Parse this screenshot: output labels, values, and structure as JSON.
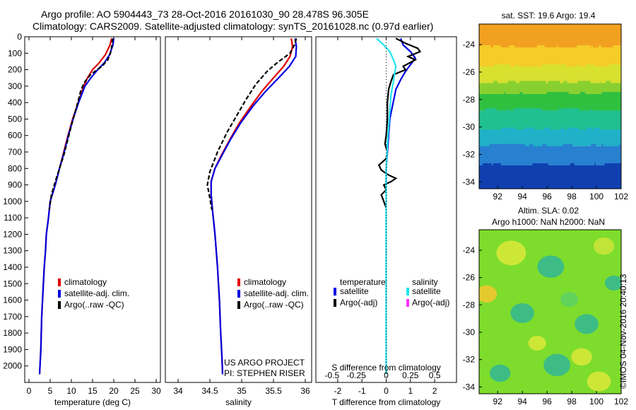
{
  "header": {
    "line1": "Argo profile: AO 5904443_73 28-Oct-2016 20161030_90 28.478S 96.305E",
    "line2": "Climatology: CARS2009. Satellite-adjusted climatology: synTS_20161028.nc (0.97d earlier)"
  },
  "colors": {
    "climatology": "#e00000",
    "satellite": "#0000e0",
    "argo": "#000000",
    "s_satellite": "#22e5f0",
    "s_argo": "#ff33ff"
  },
  "chart_data": [
    {
      "type": "line",
      "name": "temperature-profile",
      "xlabel": "temperature (deg C)",
      "xlim": [
        -1,
        31
      ],
      "ylim": [
        2100,
        0
      ],
      "xticks": [
        0,
        5,
        10,
        15,
        20,
        25,
        30
      ],
      "yticks": [
        0,
        100,
        200,
        300,
        400,
        500,
        600,
        700,
        800,
        900,
        1000,
        1100,
        1200,
        1300,
        1400,
        1500,
        1600,
        1700,
        1800,
        1900,
        2000
      ],
      "legend": [
        "climatology",
        "satellite-adj. clim.",
        "Argo(..raw -QC)"
      ],
      "legend_position": "center",
      "series": [
        {
          "name": "climatology",
          "color": "#e00000",
          "points": [
            [
              19.5,
              10
            ],
            [
              19.1,
              50
            ],
            [
              18.0,
              110
            ],
            [
              16.5,
              160
            ],
            [
              15.0,
              200
            ],
            [
              13.8,
              250
            ],
            [
              12.9,
              300
            ],
            [
              11.6,
              400
            ],
            [
              10.3,
              500
            ],
            [
              9.2,
              600
            ],
            [
              8.2,
              700
            ],
            [
              7.2,
              800
            ],
            [
              6.2,
              900
            ],
            [
              5.0,
              1000
            ],
            [
              4.6,
              1100
            ],
            [
              4.1,
              1200
            ],
            [
              3.9,
              1300
            ],
            [
              3.6,
              1400
            ],
            [
              3.4,
              1500
            ],
            [
              3.2,
              1600
            ],
            [
              3.0,
              1700
            ],
            [
              2.9,
              1800
            ],
            [
              2.8,
              1900
            ],
            [
              2.6,
              2000
            ],
            [
              2.5,
              2050
            ]
          ]
        },
        {
          "name": "satellite-adj. clim.",
          "color": "#0000e0",
          "points": [
            [
              20.0,
              10
            ],
            [
              19.8,
              50
            ],
            [
              19.0,
              110
            ],
            [
              17.7,
              160
            ],
            [
              16.2,
              200
            ],
            [
              14.6,
              250
            ],
            [
              13.2,
              300
            ],
            [
              11.7,
              400
            ],
            [
              10.4,
              500
            ],
            [
              9.3,
              600
            ],
            [
              8.3,
              700
            ],
            [
              7.2,
              800
            ],
            [
              6.2,
              900
            ],
            [
              5.0,
              1000
            ],
            [
              4.6,
              1100
            ],
            [
              4.1,
              1200
            ],
            [
              3.9,
              1300
            ],
            [
              3.6,
              1400
            ],
            [
              3.4,
              1500
            ],
            [
              3.2,
              1600
            ],
            [
              3.0,
              1700
            ],
            [
              2.9,
              1800
            ],
            [
              2.8,
              1900
            ],
            [
              2.6,
              2000
            ],
            [
              2.5,
              2050
            ]
          ]
        },
        {
          "name": "Argo(..raw -QC)",
          "color": "#000000",
          "dash": true,
          "points": [
            [
              19.7,
              10
            ],
            [
              19.6,
              50
            ],
            [
              19.2,
              100
            ],
            [
              18.6,
              140
            ],
            [
              17.2,
              180
            ],
            [
              14.5,
              230
            ],
            [
              13.0,
              280
            ],
            [
              12.2,
              330
            ],
            [
              11.3,
              420
            ],
            [
              10.2,
              520
            ],
            [
              9.2,
              620
            ],
            [
              8.2,
              720
            ],
            [
              7.2,
              800
            ],
            [
              6.2,
              880
            ],
            [
              5.3,
              960
            ],
            [
              4.8,
              1050
            ]
          ]
        }
      ]
    },
    {
      "type": "line",
      "name": "salinity-profile",
      "xlabel": "salinity",
      "xlim": [
        33.8,
        36.1
      ],
      "ylim": [
        2100,
        0
      ],
      "xticks": [
        34,
        34.5,
        35,
        35.5,
        36
      ],
      "legend": [
        "climatology",
        "satellite-adj. clim.",
        "Argo(..raw -QC)"
      ],
      "legend_position": "center",
      "annotation": [
        "US ARGO PROJECT",
        "PI: STEPHEN RISER"
      ],
      "series": [
        {
          "name": "climatology",
          "color": "#e00000",
          "points": [
            [
              35.78,
              10
            ],
            [
              35.8,
              60
            ],
            [
              35.76,
              120
            ],
            [
              35.66,
              180
            ],
            [
              35.5,
              250
            ],
            [
              35.32,
              330
            ],
            [
              35.15,
              420
            ],
            [
              34.97,
              520
            ],
            [
              34.82,
              620
            ],
            [
              34.68,
              720
            ],
            [
              34.58,
              800
            ],
            [
              34.52,
              880
            ],
            [
              34.52,
              960
            ],
            [
              34.54,
              1050
            ],
            [
              34.58,
              1200
            ],
            [
              34.62,
              1400
            ],
            [
              34.65,
              1600
            ],
            [
              34.67,
              1800
            ],
            [
              34.69,
              1950
            ],
            [
              34.7,
              2050
            ]
          ]
        },
        {
          "name": "satellite-adj. clim.",
          "color": "#0000e0",
          "points": [
            [
              35.84,
              10
            ],
            [
              35.86,
              60
            ],
            [
              35.85,
              120
            ],
            [
              35.75,
              180
            ],
            [
              35.58,
              250
            ],
            [
              35.38,
              330
            ],
            [
              35.18,
              420
            ],
            [
              34.99,
              520
            ],
            [
              34.83,
              620
            ],
            [
              34.69,
              720
            ],
            [
              34.58,
              800
            ],
            [
              34.52,
              880
            ],
            [
              34.52,
              960
            ],
            [
              34.54,
              1050
            ],
            [
              34.58,
              1200
            ],
            [
              34.62,
              1400
            ],
            [
              34.65,
              1600
            ],
            [
              34.67,
              1800
            ],
            [
              34.69,
              1950
            ],
            [
              34.7,
              2050
            ]
          ]
        },
        {
          "name": "Argo(..raw -QC)",
          "color": "#000000",
          "dash": true,
          "points": [
            [
              35.86,
              10
            ],
            [
              35.83,
              50
            ],
            [
              35.76,
              100
            ],
            [
              35.55,
              160
            ],
            [
              35.4,
              210
            ],
            [
              35.22,
              290
            ],
            [
              35.07,
              380
            ],
            [
              34.92,
              480
            ],
            [
              34.77,
              580
            ],
            [
              34.62,
              700
            ],
            [
              34.5,
              820
            ],
            [
              34.46,
              900
            ],
            [
              34.5,
              980
            ],
            [
              34.53,
              1050
            ]
          ]
        }
      ]
    },
    {
      "type": "line",
      "name": "difference-profile",
      "xlabel": "T difference from climatology",
      "xlabel_top": "S difference from climatology",
      "xlim": [
        -2.9,
        2.9
      ],
      "ylim": [
        2100,
        0
      ],
      "xticks": [
        -2,
        -1,
        0,
        1,
        2
      ],
      "xticks_top": [
        "-0.5",
        "-0.25",
        "0",
        "0.25",
        "0.5"
      ],
      "legend": {
        "temperature_title": "temperature",
        "salinity_title": "salinity",
        "t_sat": "satellite",
        "t_argo": "Argo(-adj)",
        "s_sat": "satellite",
        "s_argo": "Argo(-adj)"
      },
      "series": [
        {
          "name": "T satellite",
          "color": "#0000e0",
          "points": [
            [
              0.6,
              10
            ],
            [
              0.7,
              50
            ],
            [
              1.0,
              90
            ],
            [
              1.2,
              130
            ],
            [
              1.0,
              170
            ],
            [
              0.8,
              210
            ],
            [
              0.6,
              260
            ],
            [
              0.4,
              320
            ],
            [
              0.15,
              500
            ],
            [
              0.05,
              700
            ],
            [
              0.0,
              800
            ],
            [
              0.0,
              900
            ]
          ]
        },
        {
          "name": "T Argo(-adj)",
          "color": "#000000",
          "points": [
            [
              0.4,
              10
            ],
            [
              0.8,
              40
            ],
            [
              1.3,
              70
            ],
            [
              1.4,
              90
            ],
            [
              0.9,
              120
            ],
            [
              1.2,
              140
            ],
            [
              0.7,
              180
            ],
            [
              0.8,
              200
            ],
            [
              0.3,
              230
            ],
            [
              0.2,
              270
            ],
            [
              0.1,
              320
            ],
            [
              0.05,
              400
            ],
            [
              0.05,
              500
            ],
            [
              0.0,
              600
            ],
            [
              -0.05,
              650
            ],
            [
              0.05,
              700
            ],
            [
              0.0,
              740
            ],
            [
              -0.3,
              780
            ],
            [
              -0.2,
              810
            ],
            [
              0.1,
              840
            ],
            [
              0.4,
              860
            ],
            [
              0.2,
              880
            ],
            [
              -0.1,
              900
            ],
            [
              0.0,
              930
            ],
            [
              -0.2,
              960
            ],
            [
              -0.1,
              1000
            ],
            [
              0.0,
              1040
            ]
          ]
        },
        {
          "name": "S satellite",
          "color": "#22e5f0",
          "points": [
            [
              -0.4,
              10
            ],
            [
              -0.1,
              50
            ],
            [
              0.15,
              90
            ],
            [
              0.3,
              140
            ],
            [
              0.4,
              180
            ],
            [
              0.35,
              220
            ],
            [
              0.3,
              270
            ],
            [
              0.2,
              350
            ],
            [
              0.15,
              450
            ],
            [
              0.1,
              550
            ],
            [
              0.05,
              650
            ],
            [
              0.02,
              750
            ],
            [
              0.0,
              800
            ],
            [
              0.0,
              1000
            ],
            [
              0.0,
              1500
            ],
            [
              0.0,
              2000
            ],
            [
              0.0,
              2050
            ]
          ]
        }
      ]
    },
    {
      "type": "heatmap",
      "name": "sst-map",
      "title": "sat. SST: 19.6 Argo: 19.4",
      "xlim": [
        90.5,
        102
      ],
      "ylim": [
        -34.5,
        -22.5
      ],
      "xticks": [
        92,
        94,
        96,
        98,
        100,
        102
      ],
      "yticks": [
        -24,
        -26,
        -28,
        -30,
        -32,
        -34
      ],
      "bands": [
        {
          "from": -22.5,
          "to": -24.2,
          "color": "#f2a020"
        },
        {
          "from": -24.2,
          "to": -25.6,
          "color": "#f5cc28"
        },
        {
          "from": -25.6,
          "to": -26.8,
          "color": "#d8e030"
        },
        {
          "from": -26.8,
          "to": -27.6,
          "color": "#88d030"
        },
        {
          "from": -27.6,
          "to": -28.8,
          "color": "#30c040"
        },
        {
          "from": -28.8,
          "to": -30.2,
          "color": "#20c090"
        },
        {
          "from": -30.2,
          "to": -31.4,
          "color": "#20b0c8"
        },
        {
          "from": -31.4,
          "to": -32.8,
          "color": "#2880d0"
        },
        {
          "from": -32.8,
          "to": -34.5,
          "color": "#1040b0"
        }
      ]
    },
    {
      "type": "heatmap",
      "name": "sla-map",
      "title": "Altim. SLA: 0.02",
      "subtitle": "Argo h1000: NaN h2000: NaN",
      "xlim": [
        90.5,
        102
      ],
      "ylim": [
        -34.5,
        -22.5
      ],
      "xticks": [
        92,
        94,
        96,
        98,
        100,
        102
      ],
      "yticks": [
        -24,
        -26,
        -28,
        -30,
        -32,
        -34
      ],
      "base_color": "#7ddc2c",
      "blobs": [
        {
          "x": 96.3,
          "y": -25.2,
          "r": 0.9,
          "color": "#36b890"
        },
        {
          "x": 94.0,
          "y": -28.6,
          "r": 0.8,
          "color": "#36b890"
        },
        {
          "x": 99.2,
          "y": -29.4,
          "r": 0.8,
          "color": "#36b890"
        },
        {
          "x": 96.8,
          "y": -32.4,
          "r": 0.9,
          "color": "#36b890"
        },
        {
          "x": 92.2,
          "y": -33.0,
          "r": 0.7,
          "color": "#36b890"
        },
        {
          "x": 101.4,
          "y": -26.4,
          "r": 0.6,
          "color": "#36b890"
        },
        {
          "x": 97.8,
          "y": -27.6,
          "r": 0.6,
          "color": "#5ed060"
        },
        {
          "x": 91.1,
          "y": -27.2,
          "r": 0.7,
          "color": "#f0c830"
        },
        {
          "x": 100.2,
          "y": -33.6,
          "r": 0.8,
          "color": "#d6e838"
        },
        {
          "x": 93.1,
          "y": -24.2,
          "r": 1.0,
          "color": "#d6e838"
        },
        {
          "x": 98.8,
          "y": -31.8,
          "r": 0.7,
          "color": "#d6e838"
        },
        {
          "x": 95.2,
          "y": -30.8,
          "r": 0.6,
          "color": "#d6e838"
        },
        {
          "x": 100.6,
          "y": -23.7,
          "r": 0.7,
          "color": "#c8e438"
        }
      ]
    }
  ],
  "footer": {
    "credit": "©IMOS 04-Nov-2016 20:40:13"
  }
}
